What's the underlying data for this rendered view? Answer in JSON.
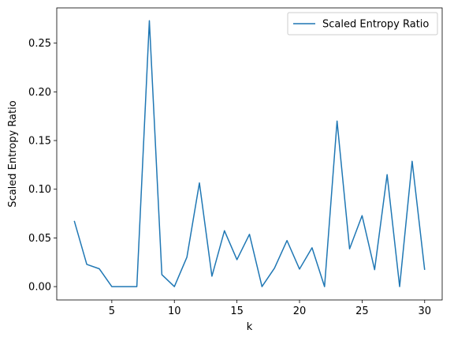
{
  "chart_data": {
    "type": "line",
    "xlabel": "k",
    "ylabel": "Scaled Entropy Ratio",
    "xlim": [
      0.6,
      31.4
    ],
    "ylim": [
      -0.0137,
      0.2862
    ],
    "xticks": [
      5,
      10,
      15,
      20,
      25,
      30
    ],
    "xtick_labels": [
      "5",
      "10",
      "15",
      "20",
      "25",
      "30"
    ],
    "yticks": [
      0.0,
      0.05,
      0.1,
      0.15,
      0.2,
      0.25
    ],
    "ytick_labels": [
      "0.00",
      "0.05",
      "0.10",
      "0.15",
      "0.20",
      "0.25"
    ],
    "grid": false,
    "legend": {
      "position": "upper right"
    },
    "series": [
      {
        "name": "Scaled Entropy Ratio",
        "color": "#1f77b4",
        "x": [
          2,
          3,
          4,
          5,
          6,
          7,
          8,
          9,
          10,
          11,
          12,
          13,
          14,
          15,
          16,
          17,
          18,
          19,
          20,
          21,
          22,
          23,
          24,
          25,
          26,
          27,
          28,
          29,
          30
        ],
        "y": [
          0.0675,
          0.0228,
          0.0183,
          0.0,
          0.0,
          0.0,
          0.273,
          0.0123,
          0.0,
          0.0302,
          0.1065,
          0.0107,
          0.0574,
          0.0277,
          0.0537,
          0.0,
          0.019,
          0.0473,
          0.018,
          0.0399,
          0.0,
          0.17,
          0.0388,
          0.0729,
          0.0174,
          0.115,
          0.0,
          0.1287,
          0.0172
        ]
      }
    ]
  }
}
